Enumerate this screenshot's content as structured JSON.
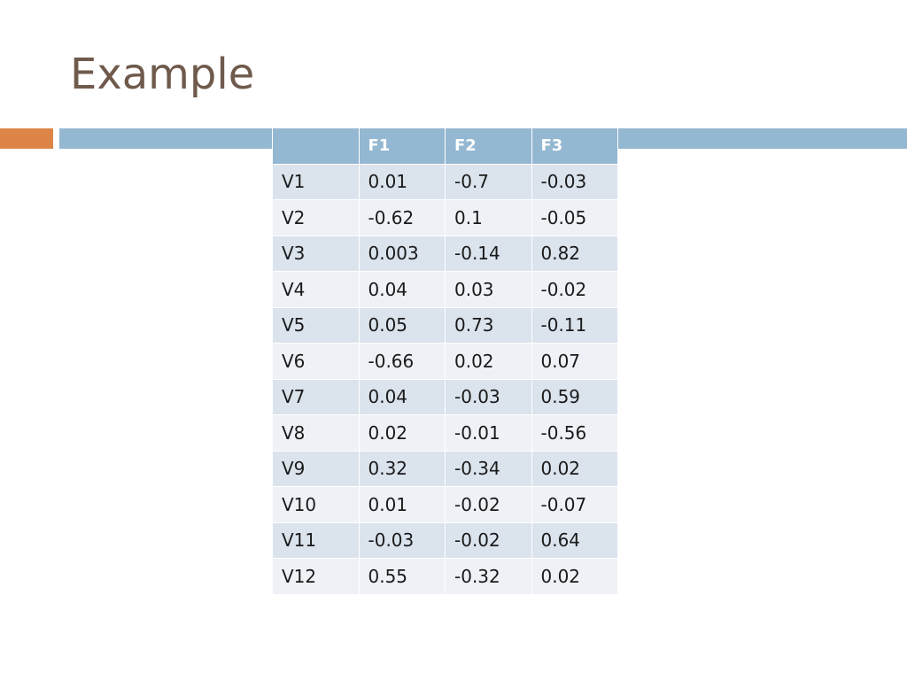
{
  "slide": {
    "title": "Example"
  },
  "colors": {
    "title_text": "#6f5a4c",
    "accent_orange": "#dd8547",
    "accent_blue": "#94b7d2",
    "table_header": "#94b7d2",
    "row_band_dark": "#dbe3ed",
    "row_band_light": "#eef2f7"
  },
  "table": {
    "headers": [
      "",
      "F1",
      "F2",
      "F3"
    ],
    "rows": [
      [
        "V1",
        "0.01",
        "-0.7",
        "-0.03"
      ],
      [
        "V2",
        "-0.62",
        "0.1",
        "-0.05"
      ],
      [
        "V3",
        "0.003",
        "-0.14",
        "0.82"
      ],
      [
        "V4",
        "0.04",
        "0.03",
        "-0.02"
      ],
      [
        "V5",
        "0.05",
        "0.73",
        "-0.11"
      ],
      [
        "V6",
        "-0.66",
        "0.02",
        "0.07"
      ],
      [
        "V7",
        "0.04",
        "-0.03",
        "0.59"
      ],
      [
        "V8",
        "0.02",
        "-0.01",
        "-0.56"
      ],
      [
        "V9",
        "0.32",
        "-0.34",
        "0.02"
      ],
      [
        "V10",
        "0.01",
        "-0.02",
        "-0.07"
      ],
      [
        "V11",
        "-0.03",
        "-0.02",
        "0.64"
      ],
      [
        "V12",
        "0.55",
        "-0.32",
        "0.02"
      ]
    ]
  }
}
